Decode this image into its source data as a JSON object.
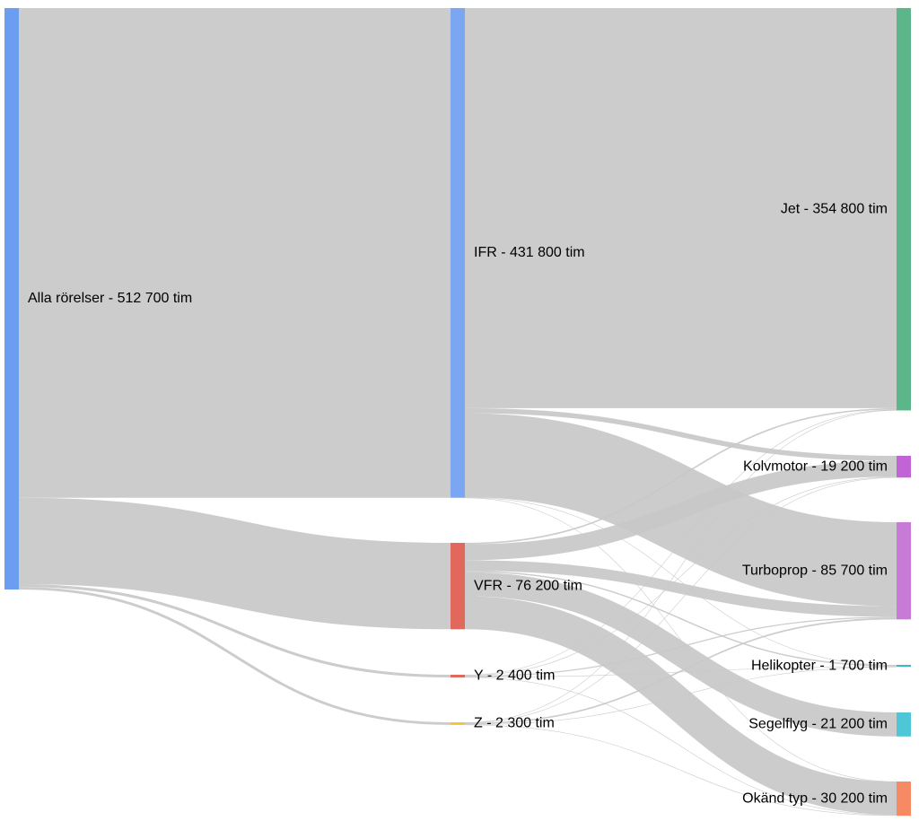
{
  "chart_data": {
    "type": "sankey",
    "title": "",
    "unit": "tim",
    "nodes": [
      {
        "id": "alla",
        "label": "Alla rörelser - 512 700 tim",
        "value": 512700,
        "column": 0,
        "color": "#6b9ef0"
      },
      {
        "id": "ifr",
        "label": "IFR - 431 800 tim",
        "value": 431800,
        "column": 1,
        "color": "#7ba6f2"
      },
      {
        "id": "vfr",
        "label": "VFR - 76 200 tim",
        "value": 76200,
        "column": 1,
        "color": "#e0685d"
      },
      {
        "id": "y",
        "label": "Y - 2 400 tim",
        "value": 2400,
        "column": 1,
        "color": "#e0685d"
      },
      {
        "id": "z",
        "label": "Z - 2 300 tim",
        "value": 2300,
        "column": 1,
        "color": "#f2c43a"
      },
      {
        "id": "jet",
        "label": "Jet - 354 800 tim",
        "value": 354800,
        "column": 2,
        "color": "#5cb68a"
      },
      {
        "id": "kolv",
        "label": "Kolvmotor - 19 200 tim",
        "value": 19200,
        "column": 2,
        "color": "#c064d6"
      },
      {
        "id": "turbo",
        "label": "Turboprop - 85 700 tim",
        "value": 85700,
        "column": 2,
        "color": "#c77ad6"
      },
      {
        "id": "heli",
        "label": "Helikopter - 1 700 tim",
        "value": 1700,
        "column": 2,
        "color": "#3fb6c6"
      },
      {
        "id": "segel",
        "label": "Segelflyg - 21 200 tim",
        "value": 21200,
        "column": 2,
        "color": "#4ec6d6"
      },
      {
        "id": "okand",
        "label": "Okänd typ - 30 200 tim",
        "value": 30200,
        "column": 2,
        "color": "#f58a64"
      }
    ],
    "links": [
      {
        "source": "alla",
        "target": "ifr",
        "value": 431800
      },
      {
        "source": "alla",
        "target": "vfr",
        "value": 76200
      },
      {
        "source": "alla",
        "target": "y",
        "value": 2400
      },
      {
        "source": "alla",
        "target": "z",
        "value": 2300
      },
      {
        "source": "ifr",
        "target": "jet",
        "value": 352800
      },
      {
        "source": "ifr",
        "target": "kolv",
        "value": 4400
      },
      {
        "source": "ifr",
        "target": "turbo",
        "value": 74100
      },
      {
        "source": "ifr",
        "target": "heli",
        "value": 300
      },
      {
        "source": "ifr",
        "target": "okand",
        "value": 200
      },
      {
        "source": "vfr",
        "target": "jet",
        "value": 1300
      },
      {
        "source": "vfr",
        "target": "kolv",
        "value": 14000
      },
      {
        "source": "vfr",
        "target": "turbo",
        "value": 9300
      },
      {
        "source": "vfr",
        "target": "heli",
        "value": 1200
      },
      {
        "source": "vfr",
        "target": "segel",
        "value": 21200
      },
      {
        "source": "vfr",
        "target": "okand",
        "value": 29200
      },
      {
        "source": "y",
        "target": "jet",
        "value": 400
      },
      {
        "source": "y",
        "target": "kolv",
        "value": 500
      },
      {
        "source": "y",
        "target": "turbo",
        "value": 1000
      },
      {
        "source": "y",
        "target": "heli",
        "value": 100
      },
      {
        "source": "y",
        "target": "okand",
        "value": 400
      },
      {
        "source": "z",
        "target": "jet",
        "value": 300
      },
      {
        "source": "z",
        "target": "kolv",
        "value": 300
      },
      {
        "source": "z",
        "target": "turbo",
        "value": 1300
      },
      {
        "source": "z",
        "target": "heli",
        "value": 100
      },
      {
        "source": "z",
        "target": "okand",
        "value": 300
      }
    ]
  }
}
